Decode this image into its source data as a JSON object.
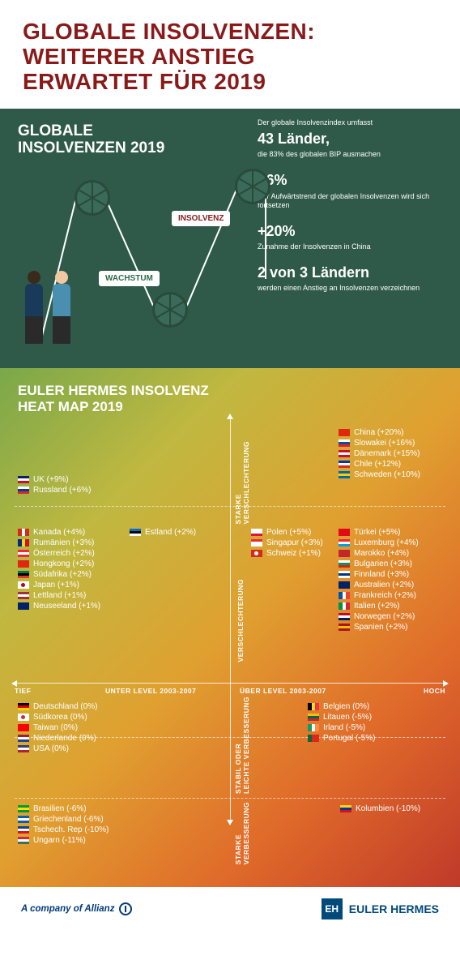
{
  "hero": {
    "title_line1": "GLOBALE  INSOLVENZEN:",
    "title_line2": "WEITERER ANSTIEG",
    "title_line3": "ERWARTET FÜR 2019",
    "title_color": "#8a1a1a"
  },
  "green_panel": {
    "bg_color": "#2f5a4a",
    "title_line1": "GLOBALE",
    "title_line2": "INSOLVENZEN 2019",
    "tag_insolvenz": "INSOLVENZ",
    "tag_wachstum": "WACHSTUM",
    "facts": [
      {
        "pre": "Der globale Insolvenzindex umfasst",
        "big": "43 Länder,",
        "post": "die 83% des globalen BIP ausmachen"
      },
      {
        "pre": "",
        "big": "+6%",
        "post": "Der Aufwärtstrend der globalen Insolvenzen wird sich fortsetzen"
      },
      {
        "pre": "",
        "big": "+20%",
        "post": "Zunahme der Insolvenzen in China"
      },
      {
        "pre": "",
        "big": "2 von 3 Ländern",
        "post": "werden einen Anstieg an Insolvenzen verzeichnen"
      }
    ]
  },
  "heat": {
    "title_line1": "EULER HERMES INSOLVENZ",
    "title_line2": "HEAT MAP 2019",
    "axis": {
      "tief": "TIEF",
      "hoch": "HOCH",
      "unter": "UNTER LEVEL 2003-2007",
      "uber": "ÜBER LEVEL 2003-2007",
      "starke_v": "STARKE\nVERSCHLECHTERUNG",
      "versch": "VERSCHLECHTERUNG",
      "stabil": "STABIL ODER\nLEICHTE VERBESSERUNG",
      "starke_vb": "STARKE\nVERBESSERUNG"
    },
    "groups": {
      "tl_top": [
        {
          "c": "UK",
          "v": "(+9%)",
          "f": [
            "#012169",
            "#fff",
            "#c8102e"
          ]
        },
        {
          "c": "Russland",
          "v": "(+6%)",
          "f": [
            "#fff",
            "#0039a6",
            "#d52b1e"
          ]
        }
      ],
      "tl_mid": [
        {
          "c": "Kanada",
          "v": "(+4%)",
          "f": [
            "#d52b1e",
            "#fff",
            "#d52b1e"
          ],
          "tri": true
        },
        {
          "c": "Rumänien",
          "v": "(+3%)",
          "f": [
            "#002b7f",
            "#fcd116",
            "#ce1126"
          ],
          "tri": true
        },
        {
          "c": "Österreich",
          "v": "(+2%)",
          "f": [
            "#ed2939",
            "#fff",
            "#ed2939"
          ]
        },
        {
          "c": "Hongkong",
          "v": "(+2%)",
          "f": [
            "#de2910",
            "#de2910",
            "#de2910"
          ]
        },
        {
          "c": "Südafrika",
          "v": "(+2%)",
          "f": [
            "#007a4d",
            "#000",
            "#de3831"
          ]
        },
        {
          "c": "Japan",
          "v": "(+1%)",
          "f": [
            "#fff",
            "#fff",
            "#fff"
          ],
          "dot": "#bc002d"
        },
        {
          "c": "Lettland",
          "v": "(+1%)",
          "f": [
            "#9e3039",
            "#fff",
            "#9e3039"
          ]
        },
        {
          "c": "Neuseeland",
          "v": "(+1%)",
          "f": [
            "#012169",
            "#012169",
            "#012169"
          ]
        }
      ],
      "center_top": [
        {
          "c": "Estland",
          "v": "(+2%)",
          "f": [
            "#0072ce",
            "#000",
            "#fff"
          ]
        }
      ],
      "tr_top": [
        {
          "c": "China",
          "v": "(+20%)",
          "f": [
            "#de2910",
            "#de2910",
            "#de2910"
          ]
        },
        {
          "c": "Slowakei",
          "v": "(+16%)",
          "f": [
            "#fff",
            "#0b4ea2",
            "#ee1c25"
          ]
        },
        {
          "c": "Dänemark",
          "v": "(+15%)",
          "f": [
            "#c8102e",
            "#fff",
            "#c8102e"
          ]
        },
        {
          "c": "Chile",
          "v": "(+12%)",
          "f": [
            "#0039a6",
            "#fff",
            "#d52b1e"
          ]
        },
        {
          "c": "Schweden",
          "v": "(+10%)",
          "f": [
            "#006aa7",
            "#fecc00",
            "#006aa7"
          ]
        }
      ],
      "cr_mid": [
        {
          "c": "Polen",
          "v": "(+5%)",
          "f": [
            "#fff",
            "#fff",
            "#dc143c"
          ]
        },
        {
          "c": "Singapur",
          "v": "(+3%)",
          "f": [
            "#ed2939",
            "#fff",
            "#fff"
          ]
        },
        {
          "c": "Schweiz",
          "v": "(+1%)",
          "f": [
            "#d52b1e",
            "#d52b1e",
            "#d52b1e"
          ],
          "dot": "#fff"
        }
      ],
      "tr_mid": [
        {
          "c": "Türkei",
          "v": "(+5%)",
          "f": [
            "#e30a17",
            "#e30a17",
            "#e30a17"
          ]
        },
        {
          "c": "Luxemburg",
          "v": "(+4%)",
          "f": [
            "#ed2939",
            "#fff",
            "#00a1de"
          ]
        },
        {
          "c": "Marokko",
          "v": "(+4%)",
          "f": [
            "#c1272d",
            "#c1272d",
            "#c1272d"
          ]
        },
        {
          "c": "Bulgarien",
          "v": "(+3%)",
          "f": [
            "#fff",
            "#00966e",
            "#d62612"
          ]
        },
        {
          "c": "Finnland",
          "v": "(+3%)",
          "f": [
            "#fff",
            "#003580",
            "#fff"
          ]
        },
        {
          "c": "Australien",
          "v": "(+2%)",
          "f": [
            "#012169",
            "#012169",
            "#012169"
          ]
        },
        {
          "c": "Frankreich",
          "v": "(+2%)",
          "f": [
            "#0055a4",
            "#fff",
            "#ef4135"
          ],
          "tri": true
        },
        {
          "c": "Italien",
          "v": "(+2%)",
          "f": [
            "#009246",
            "#fff",
            "#ce2b37"
          ],
          "tri": true
        },
        {
          "c": "Norwegen",
          "v": "(+2%)",
          "f": [
            "#ba0c2f",
            "#fff",
            "#00205b"
          ]
        },
        {
          "c": "Spanien",
          "v": "(+2%)",
          "f": [
            "#aa151b",
            "#f1bf00",
            "#aa151b"
          ]
        }
      ],
      "bl_top": [
        {
          "c": "Deutschland",
          "v": "(0%)",
          "f": [
            "#000",
            "#dd0000",
            "#ffce00"
          ]
        },
        {
          "c": "Südkorea",
          "v": "(0%)",
          "f": [
            "#fff",
            "#fff",
            "#fff"
          ],
          "dot": "#cd2e3a"
        },
        {
          "c": "Taiwan",
          "v": "(0%)",
          "f": [
            "#fe0000",
            "#fe0000",
            "#fe0000"
          ]
        },
        {
          "c": "Niederlande",
          "v": "(0%)",
          "f": [
            "#ae1c28",
            "#fff",
            "#21468b"
          ]
        },
        {
          "c": "USA",
          "v": "(0%)",
          "f": [
            "#3c3b6e",
            "#fff",
            "#b22234"
          ]
        }
      ],
      "bl_bot": [
        {
          "c": "Brasilien",
          "v": "(-6%)",
          "f": [
            "#009c3b",
            "#ffdf00",
            "#009c3b"
          ]
        },
        {
          "c": "Griechenland",
          "v": "(-6%)",
          "f": [
            "#0d5eaf",
            "#fff",
            "#0d5eaf"
          ]
        },
        {
          "c": "Tschech. Rep",
          "v": "(-10%)",
          "f": [
            "#11457e",
            "#fff",
            "#d7141a"
          ]
        },
        {
          "c": "Ungarn",
          "v": "(-11%)",
          "f": [
            "#cd2a3e",
            "#fff",
            "#436f4d"
          ]
        }
      ],
      "br_top": [
        {
          "c": "Belgien",
          "v": "(0%)",
          "f": [
            "#000",
            "#fdda24",
            "#ef3340"
          ],
          "tri": true
        },
        {
          "c": "Litauen",
          "v": "(-5%)",
          "f": [
            "#fdb913",
            "#006a44",
            "#c1272d"
          ]
        },
        {
          "c": "Irland",
          "v": "(-5%)",
          "f": [
            "#169b62",
            "#fff",
            "#ff883e"
          ],
          "tri": true
        },
        {
          "c": "Portugal",
          "v": "(-5%)",
          "f": [
            "#046a38",
            "#da291c",
            "#da291c"
          ],
          "tri": true
        }
      ],
      "br_bot": [
        {
          "c": "Kolumbien",
          "v": "(-10%)",
          "f": [
            "#fcd116",
            "#003893",
            "#ce1126"
          ]
        }
      ]
    }
  },
  "footer": {
    "allianz": "A company of Allianz",
    "eh": "EULER HERMES"
  }
}
